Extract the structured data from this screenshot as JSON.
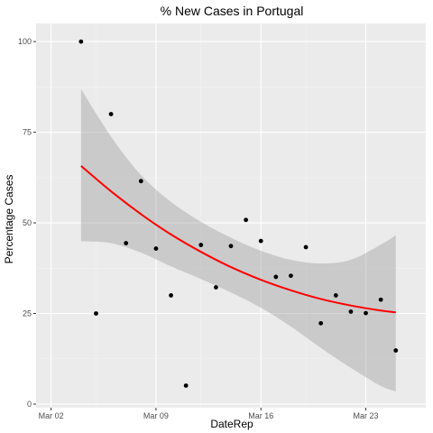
{
  "chart_data": {
    "type": "scatter",
    "title": "% New Cases in Portugal",
    "xlabel": "DateRep",
    "ylabel": "Percentage Cases",
    "xlim": [
      "2020-03-01",
      "2020-03-27"
    ],
    "ylim": [
      -1,
      105
    ],
    "x_ticks": [
      {
        "date": "2020-03-02",
        "label": "Mar 02"
      },
      {
        "date": "2020-03-09",
        "label": "Mar 09"
      },
      {
        "date": "2020-03-16",
        "label": "Mar 16"
      },
      {
        "date": "2020-03-23",
        "label": "Mar 23"
      }
    ],
    "y_ticks": [
      0,
      25,
      50,
      75,
      100
    ],
    "grid": true,
    "points": [
      {
        "x": "2020-03-04",
        "y": 100
      },
      {
        "x": "2020-03-05",
        "y": 25
      },
      {
        "x": "2020-03-06",
        "y": 80
      },
      {
        "x": "2020-03-07",
        "y": 44.4
      },
      {
        "x": "2020-03-08",
        "y": 61.5
      },
      {
        "x": "2020-03-09",
        "y": 42.9
      },
      {
        "x": "2020-03-10",
        "y": 30
      },
      {
        "x": "2020-03-11",
        "y": 5.1
      },
      {
        "x": "2020-03-12",
        "y": 43.9
      },
      {
        "x": "2020-03-13",
        "y": 32.2
      },
      {
        "x": "2020-03-14",
        "y": 43.6
      },
      {
        "x": "2020-03-15",
        "y": 50.8
      },
      {
        "x": "2020-03-16",
        "y": 45
      },
      {
        "x": "2020-03-17",
        "y": 35.1
      },
      {
        "x": "2020-03-18",
        "y": 35.4
      },
      {
        "x": "2020-03-19",
        "y": 43.3
      },
      {
        "x": "2020-03-20",
        "y": 22.3
      },
      {
        "x": "2020-03-21",
        "y": 30
      },
      {
        "x": "2020-03-22",
        "y": 25.5
      },
      {
        "x": "2020-03-23",
        "y": 25.1
      },
      {
        "x": "2020-03-24",
        "y": 28.8
      },
      {
        "x": "2020-03-25",
        "y": 14.8
      }
    ],
    "smooth": {
      "color": "#ff0000",
      "band_color": "#999999",
      "x": [
        "2020-03-04",
        "2020-03-06",
        "2020-03-08",
        "2020-03-10",
        "2020-03-12",
        "2020-03-14",
        "2020-03-16",
        "2020-03-18",
        "2020-03-20",
        "2020-03-22",
        "2020-03-24",
        "2020-03-25"
      ],
      "fit": [
        65.7,
        58.7,
        52.4,
        46.8,
        42.0,
        37.8,
        34.3,
        31.4,
        29.0,
        27.2,
        25.8,
        25.3
      ],
      "lower": [
        44.9,
        44.4,
        41.8,
        38.0,
        34.5,
        30.8,
        26.6,
        21.4,
        15.5,
        10.0,
        5.0,
        3.5
      ],
      "upper": [
        86.9,
        73.8,
        63.2,
        55.8,
        50.3,
        45.9,
        42.3,
        39.8,
        38.8,
        39.8,
        44.0,
        46.6
      ]
    },
    "colors": {
      "panel": "#ebebeb",
      "grid_major": "#ffffff",
      "grid_minor": "#f2f2f2",
      "point": "#000000"
    }
  }
}
